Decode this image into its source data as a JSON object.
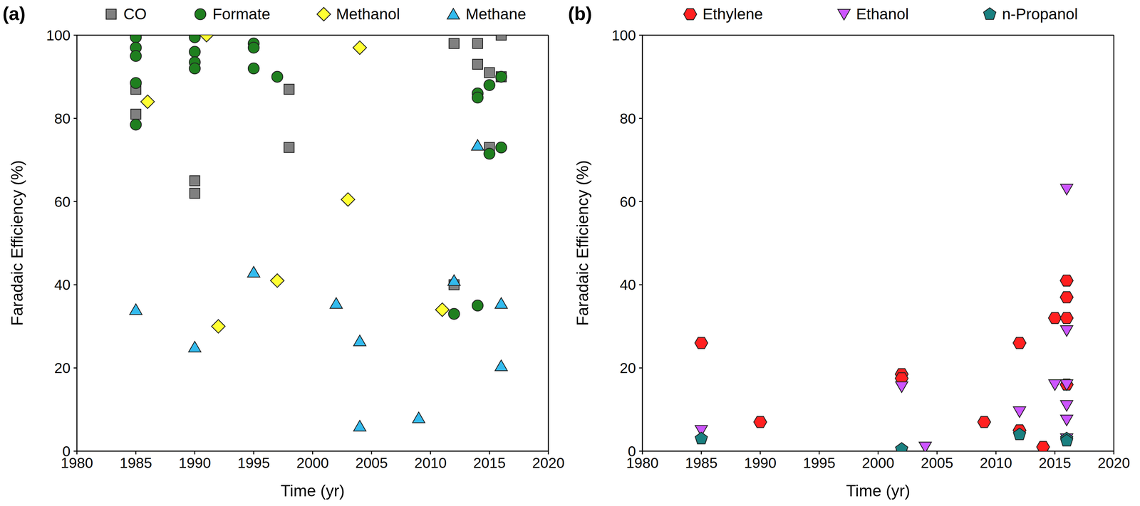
{
  "chart_data": [
    {
      "type": "scatter",
      "title": "(a)",
      "x_label": "Time (yr)",
      "y_label": "Faradaic Efficiency (%)",
      "xlim": [
        1980,
        2020
      ],
      "xticks": [
        1980,
        1985,
        1990,
        1995,
        2000,
        2005,
        2010,
        2015,
        2020
      ],
      "ylim": [
        0,
        100
      ],
      "yticks": [
        0,
        20,
        40,
        60,
        80,
        100
      ],
      "grid": false,
      "legend": "top",
      "series": [
        {
          "name": "CO",
          "color": "#808080",
          "marker": "square",
          "x": [
            1985,
            1985,
            1990,
            1990,
            1998,
            1998,
            2012,
            2012,
            2014,
            2014,
            2015,
            2015,
            2016,
            2016
          ],
          "values": [
            81,
            87,
            65,
            62,
            87,
            73,
            98,
            40,
            98,
            93,
            91,
            73,
            100,
            90
          ]
        },
        {
          "name": "Formate",
          "color": "#1f7f1f",
          "marker": "circle",
          "x": [
            1985,
            1985,
            1985,
            1985,
            1985,
            1990,
            1990,
            1990,
            1990,
            1995,
            1995,
            1995,
            1997,
            2012,
            2014,
            2014,
            2014,
            2015,
            2015,
            2016,
            2016
          ],
          "values": [
            99.5,
            97,
            95,
            88.5,
            78.5,
            99.5,
            96,
            93.5,
            92,
            98,
            97,
            92,
            90,
            33,
            86,
            85,
            35,
            88,
            71.5,
            90,
            73
          ]
        },
        {
          "name": "Methanol",
          "color": "#ffff33",
          "marker": "diamond",
          "x": [
            1986,
            1991,
            1992,
            1997,
            2003,
            2004,
            2011
          ],
          "values": [
            84,
            100,
            30,
            41,
            60.5,
            97,
            34
          ]
        },
        {
          "name": "Methane",
          "color": "#33bbee",
          "marker": "triangle",
          "x": [
            1985,
            1990,
            1995,
            2002,
            2004,
            2004,
            2009,
            2012,
            2014,
            2016,
            2016
          ],
          "values": [
            34,
            25,
            43,
            35.5,
            26.5,
            6,
            8,
            41,
            73.5,
            35.5,
            20.5
          ]
        }
      ]
    },
    {
      "type": "scatter",
      "title": "(b)",
      "x_label": "Time (yr)",
      "y_label": "Faradaic Efficiency (%)",
      "xlim": [
        1980,
        2020
      ],
      "xticks": [
        1980,
        1985,
        1990,
        1995,
        2000,
        2005,
        2010,
        2015,
        2020
      ],
      "ylim": [
        0,
        100
      ],
      "yticks": [
        0,
        20,
        40,
        60,
        80,
        100
      ],
      "grid": false,
      "legend": "top",
      "series": [
        {
          "name": "Ethylene",
          "color": "#ff2020",
          "marker": "hexagon",
          "x": [
            1985,
            1990,
            2002,
            2002,
            2009,
            2012,
            2012,
            2014,
            2015,
            2016,
            2016,
            2016,
            2016
          ],
          "values": [
            26,
            7,
            18.5,
            17.5,
            7,
            26,
            5,
            1,
            32,
            41,
            37,
            32,
            16
          ]
        },
        {
          "name": "Ethanol",
          "color": "#cc55ff",
          "marker": "triangle-down",
          "x": [
            1985,
            2002,
            2004,
            2012,
            2015,
            2016,
            2016,
            2016,
            2016,
            2016,
            2016
          ],
          "values": [
            5,
            15.5,
            1,
            9.5,
            16,
            63,
            29,
            16,
            11,
            7.5,
            3
          ]
        },
        {
          "name": "n-Propanol",
          "color": "#1a8080",
          "marker": "pentagon",
          "x": [
            1985,
            2002,
            2012,
            2016,
            2016
          ],
          "values": [
            3,
            0.5,
            4,
            3,
            2.5
          ]
        }
      ]
    }
  ]
}
